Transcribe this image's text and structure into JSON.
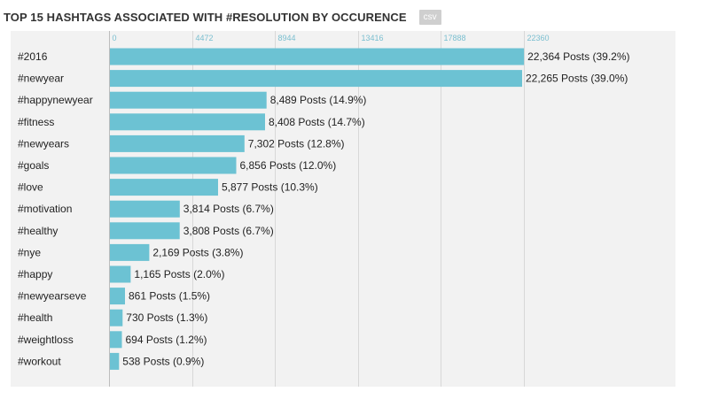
{
  "header": {
    "title": "TOP 15 HASHTAGS ASSOCIATED WITH #RESOLUTION BY OCCURENCE",
    "csv_label": "csv"
  },
  "colors": {
    "bar": "#6cc2d3",
    "panel_background": "#f2f2f2",
    "tick_label": "#7bbfd0",
    "gridline": "#d8d8d8",
    "csv_button": "#cfcfcf"
  },
  "chart_data": {
    "type": "bar",
    "orientation": "horizontal",
    "title": "TOP 15 HASHTAGS ASSOCIATED WITH #RESOLUTION BY OCCURENCE",
    "xlabel": "",
    "ylabel": "",
    "xlim": [
      0,
      22360
    ],
    "x_ticks": [
      0,
      4472,
      8944,
      13416,
      17888,
      22360
    ],
    "x_tick_labels": [
      "0",
      "4472",
      "8944",
      "13416",
      "17888",
      "22360"
    ],
    "grid": true,
    "legend": "none",
    "categories": [
      "#2016",
      "#newyear",
      "#happynewyear",
      "#fitness",
      "#newyears",
      "#goals",
      "#love",
      "#motivation",
      "#healthy",
      "#nye",
      "#happy",
      "#newyearseve",
      "#health",
      "#weightloss",
      "#workout"
    ],
    "values": [
      22364,
      22265,
      8489,
      8408,
      7302,
      6856,
      5877,
      3814,
      3808,
      2169,
      1165,
      861,
      730,
      694,
      538
    ],
    "data_labels": [
      "22,364 Posts (39.2%)",
      "22,265 Posts (39.0%)",
      "8,489 Posts (14.9%)",
      "8,408 Posts (14.7%)",
      "7,302 Posts (12.8%)",
      "6,856 Posts (12.0%)",
      "5,877 Posts (10.3%)",
      "3,814 Posts (6.7%)",
      "3,808 Posts (6.7%)",
      "2,169 Posts (3.8%)",
      "1,165 Posts (2.0%)",
      "861 Posts (1.5%)",
      "730 Posts (1.3%)",
      "694 Posts (1.2%)",
      "538 Posts (0.9%)"
    ]
  }
}
